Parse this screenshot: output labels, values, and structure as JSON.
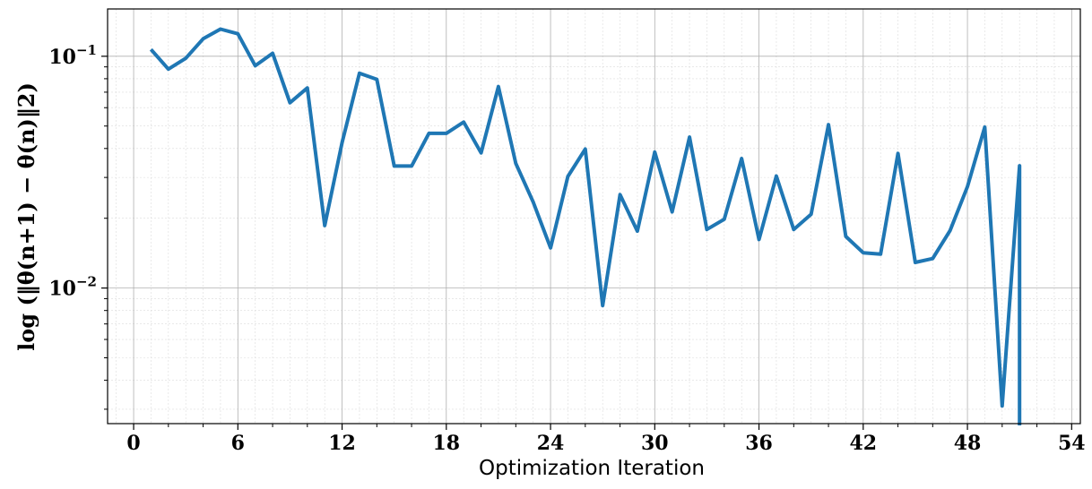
{
  "chart_data": {
    "type": "line",
    "xlabel": "Optimization Iteration",
    "ylabel": "log (‖θ(n+1) − θ(n)‖2)",
    "y_scale": "log",
    "xlim": [
      -1.5,
      54.5
    ],
    "ylim": [
      0.0026,
      0.16
    ],
    "x_ticks": [
      0,
      6,
      12,
      18,
      24,
      30,
      36,
      42,
      48,
      54
    ],
    "y_ticks": [
      {
        "base": "10",
        "exp": "−1",
        "value": 0.1
      },
      {
        "base": "10",
        "exp": "−2",
        "value": 0.01
      }
    ],
    "grid": true,
    "line_color": "#1f77b4",
    "series": [
      {
        "x": [
          1,
          2,
          3,
          4,
          5,
          6,
          7,
          8,
          9,
          10,
          11,
          12,
          13,
          14,
          15,
          16,
          17,
          18,
          19,
          20,
          21,
          22,
          23,
          24,
          25,
          26,
          27,
          28,
          29,
          30,
          31,
          32,
          33,
          34,
          35,
          36,
          37,
          38,
          39,
          40,
          41,
          42,
          43,
          44,
          45,
          46,
          47,
          48,
          49,
          50,
          51
        ],
        "values": [
          0.107,
          0.088,
          0.098,
          0.119,
          0.131,
          0.125,
          0.091,
          0.103,
          0.063,
          0.073,
          0.0186,
          0.0425,
          0.0845,
          0.0795,
          0.0336,
          0.0336,
          0.0465,
          0.0465,
          0.052,
          0.0383,
          0.074,
          0.0345,
          0.0235,
          0.0149,
          0.0303,
          0.0398,
          0.0084,
          0.0253,
          0.0176,
          0.0386,
          0.0213,
          0.0448,
          0.0179,
          0.0198,
          0.0362,
          0.0162,
          0.0304,
          0.0179,
          0.0208,
          0.0507,
          0.0167,
          0.0142,
          0.014,
          0.0381,
          0.0129,
          0.0134,
          0.0177,
          0.0274,
          0.0495,
          0.0031,
          0.0337
        ]
      }
    ],
    "tail_drop": {
      "x": 51,
      "to": "below-axis"
    }
  }
}
